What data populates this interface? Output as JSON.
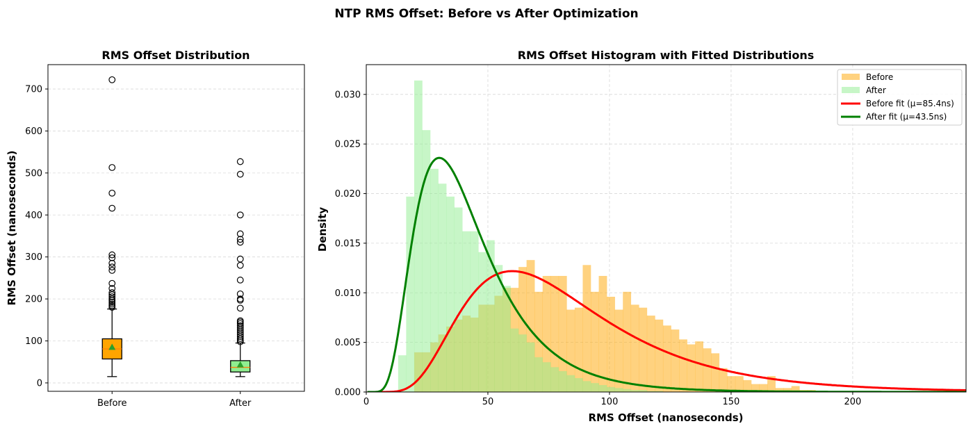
{
  "suptitle": "NTP RMS Offset: Before vs After Optimization",
  "chart_data": [
    {
      "type": "box",
      "title": "RMS Offset Distribution",
      "xlabel": "",
      "ylabel": "RMS Offset (nanoseconds)",
      "ylim": [
        -20,
        758
      ],
      "yticks": [
        0,
        100,
        200,
        300,
        400,
        500,
        600,
        700
      ],
      "grid": true,
      "categories": [
        "Before",
        "After"
      ],
      "boxes": [
        {
          "category": "Before",
          "color": "#FFA500",
          "whisker_low": 15,
          "q1": 57,
          "median": 81,
          "q3": 105,
          "whisker_high": 176,
          "mean": 85.4,
          "outliers": [
            722,
            513,
            452,
            416,
            305,
            298,
            285,
            276,
            268,
            237,
            225,
            215,
            210,
            205,
            200,
            196,
            192,
            188,
            184,
            180
          ]
        },
        {
          "category": "After",
          "color": "#90EE90",
          "whisker_low": 15,
          "q1": 26,
          "median": 37,
          "q3": 53,
          "whisker_high": 95,
          "mean": 43.5,
          "outliers": [
            527,
            497,
            400,
            355,
            342,
            335,
            295,
            280,
            245,
            212,
            200,
            197,
            178,
            148,
            145,
            141,
            136,
            131,
            126,
            121,
            116,
            111,
            106,
            102,
            98
          ]
        }
      ],
      "median_color": "#FF7F0E",
      "mean_marker_color": "#2CA02C"
    },
    {
      "type": "histogram",
      "title": "RMS Offset Histogram with Fitted Distributions",
      "xlabel": "RMS Offset (nanoseconds)",
      "ylabel": "Density",
      "xlim": [
        0,
        246.6
      ],
      "ylim": [
        0,
        0.033
      ],
      "xticks": [
        0,
        50,
        100,
        150,
        200
      ],
      "yticks": [
        "0.000",
        "0.005",
        "0.010",
        "0.015",
        "0.020",
        "0.025",
        "0.030"
      ],
      "grid": true,
      "legend_position": "top-right",
      "bin_width": 3.3,
      "series": [
        {
          "name": "Before",
          "color": "#FFA500",
          "alpha": 0.5,
          "bin_start": 19.7,
          "densities": [
            0.004,
            0.004,
            0.005,
            0.0058,
            0.0066,
            0.0073,
            0.0077,
            0.0075,
            0.0088,
            0.0088,
            0.0097,
            0.0105,
            0.0105,
            0.0126,
            0.0133,
            0.0101,
            0.0117,
            0.0117,
            0.0117,
            0.0083,
            0.0085,
            0.0128,
            0.0101,
            0.0117,
            0.0096,
            0.0083,
            0.0101,
            0.0088,
            0.0085,
            0.0077,
            0.0073,
            0.0067,
            0.0063,
            0.0053,
            0.0048,
            0.0051,
            0.0044,
            0.0039,
            0.0024,
            0.0016,
            0.0016,
            0.0012,
            0.0008,
            0.0008,
            0.0016,
            0.0004,
            0.0004,
            0.0006,
            0.0002,
            0.0002,
            0.0001,
            0.0001,
            0.0001,
            0.0001,
            0.0001,
            0.0001
          ]
        },
        {
          "name": "After",
          "color": "#90EE90",
          "alpha": 0.5,
          "bin_start": 13.1,
          "densities": [
            0.0037,
            0.0197,
            0.0314,
            0.0264,
            0.0225,
            0.021,
            0.0197,
            0.0186,
            0.0162,
            0.0162,
            0.0141,
            0.0153,
            0.0128,
            0.0107,
            0.0064,
            0.0058,
            0.005,
            0.0035,
            0.003,
            0.0025,
            0.0021,
            0.0017,
            0.0014,
            0.0011,
            0.0009,
            0.0007,
            0.0005,
            0.0004,
            0.0003,
            0.0002,
            0.0002,
            0.0001,
            0.0001
          ]
        }
      ],
      "fits": [
        {
          "name": "Before fit (μ=85.4ns)",
          "color": "#FF0000",
          "distribution": "lognormal",
          "mean": 85.4,
          "mode": 60
        },
        {
          "name": "After fit (μ=43.5ns)",
          "color": "#008000",
          "distribution": "lognormal",
          "mean": 43.5,
          "mode": 30
        }
      ]
    }
  ]
}
